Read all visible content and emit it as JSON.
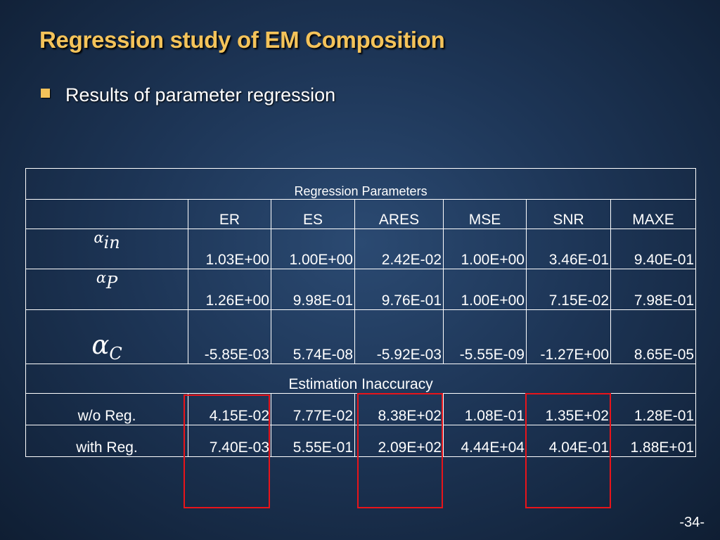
{
  "slide": {
    "title": "Regression study of EM Composition",
    "bullet": "Results of parameter regression",
    "page_number": "-34-"
  },
  "table": {
    "top_header": "Regression Parameters",
    "columns": [
      "ER",
      "ES",
      "ARES",
      "MSE",
      "SNR",
      "MAXE"
    ],
    "param_rows": [
      {
        "symbol": "α",
        "subscript": "in",
        "values": [
          "1.03E+00",
          "1.00E+00",
          "2.42E-02",
          "1.00E+00",
          "3.46E-01",
          "9.40E-01"
        ]
      },
      {
        "symbol": "α",
        "subscript": "P",
        "values": [
          "1.26E+00",
          "9.98E-01",
          "9.76E-01",
          "1.00E+00",
          "7.15E-02",
          "7.98E-01"
        ]
      },
      {
        "symbol": "α",
        "subscript": "C",
        "values": [
          "-5.85E-03",
          "5.74E-08",
          "-5.92E-03",
          "-5.55E-09",
          "-1.27E+00",
          "8.65E-05"
        ]
      }
    ],
    "section_header": "Estimation Inaccuracy",
    "inaccuracy_rows": [
      {
        "label": "w/o Reg.",
        "values": [
          "4.15E-02",
          "7.77E-02",
          "8.38E+02",
          "1.08E-01",
          "1.35E+02",
          "1.28E-01"
        ]
      },
      {
        "label": "with Reg.",
        "values": [
          "7.40E-03",
          "5.55E-01",
          "2.09E+02",
          "4.44E+04",
          "4.04E-01",
          "1.88E+01"
        ]
      }
    ]
  },
  "highlight_color": "#e8141a",
  "title_color": "#f4c35a"
}
